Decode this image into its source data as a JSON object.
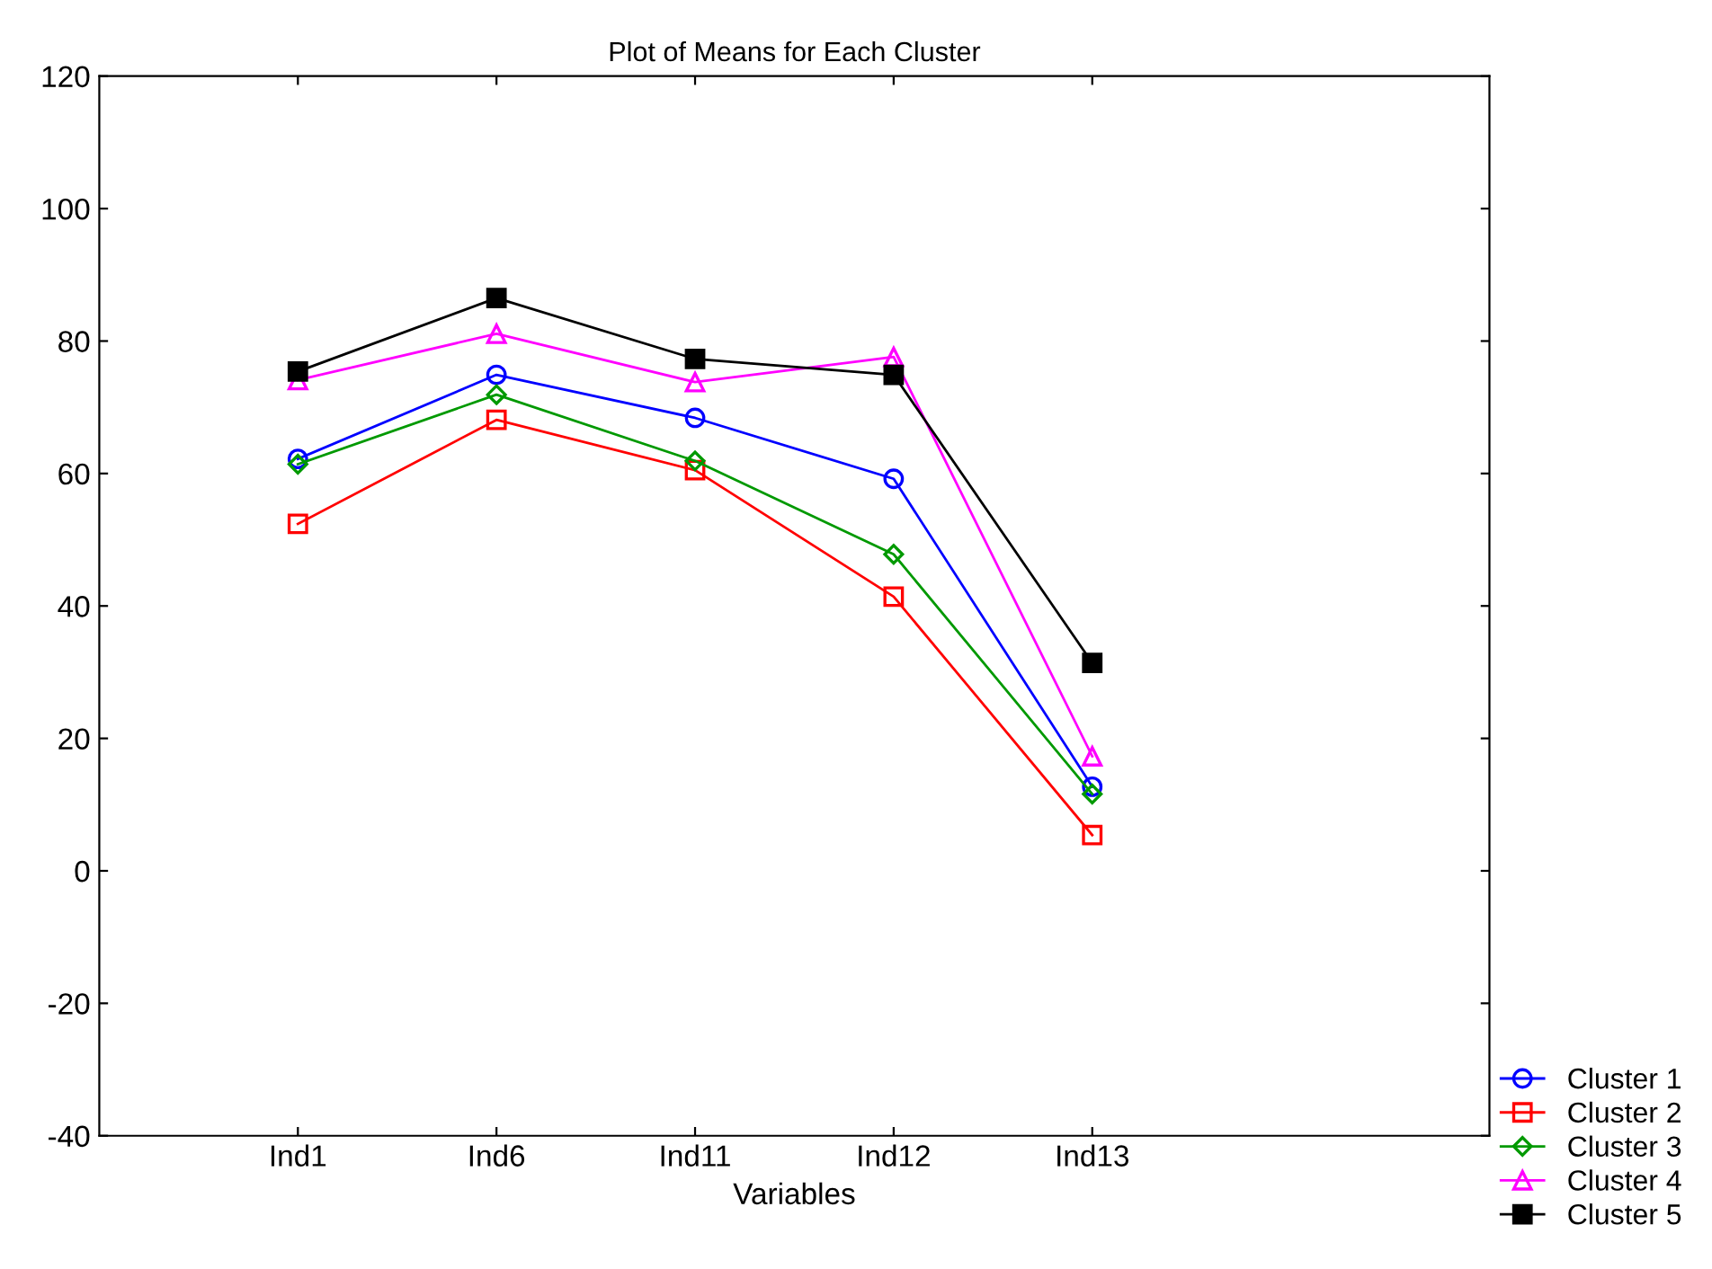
{
  "chart_data": {
    "type": "line",
    "title": "Plot of Means for Each Cluster",
    "xlabel": "Variables",
    "categories": [
      "Ind1",
      "Ind6",
      "Ind11",
      "Ind12",
      "Ind13"
    ],
    "series": [
      {
        "name": "Cluster 1",
        "color": "#0000ff",
        "marker": "circle",
        "values": [
          62.2,
          74.9,
          68.4,
          59.2,
          12.7
        ]
      },
      {
        "name": "Cluster 2",
        "color": "#ff0000",
        "marker": "square",
        "values": [
          52.4,
          68.1,
          60.5,
          41.4,
          5.4
        ]
      },
      {
        "name": "Cluster 3",
        "color": "#009900",
        "marker": "diamond",
        "values": [
          61.4,
          71.9,
          61.9,
          47.8,
          11.6
        ]
      },
      {
        "name": "Cluster 4",
        "color": "#ff00ff",
        "marker": "triangle",
        "values": [
          74.1,
          81.1,
          73.8,
          77.6,
          17.3
        ]
      },
      {
        "name": "Cluster 5",
        "color": "#000000",
        "marker": "square",
        "values": [
          75.4,
          86.5,
          77.3,
          74.9,
          31.4
        ]
      }
    ],
    "ylim": [
      -40,
      120
    ],
    "yticks": [
      -40,
      -20,
      0,
      20,
      40,
      60,
      80,
      100,
      120
    ],
    "grid": false,
    "legend": "bottom right",
    "line_style": "solid"
  }
}
